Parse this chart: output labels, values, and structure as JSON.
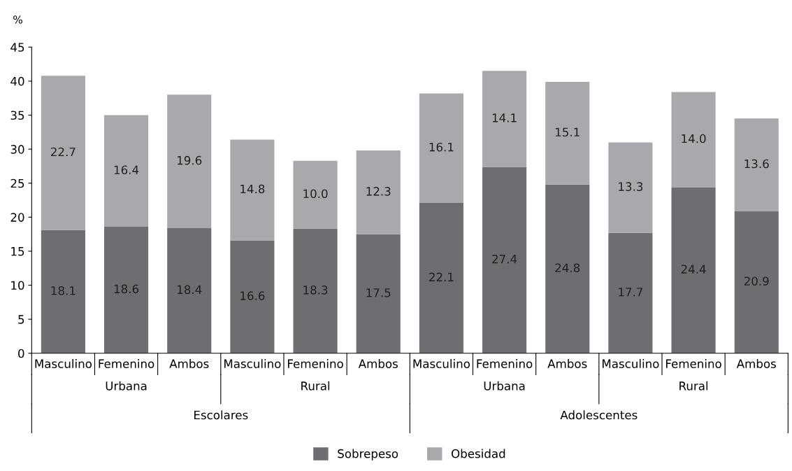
{
  "chart_data": {
    "type": "bar",
    "stacked": true,
    "ylabel": "%",
    "categories": [
      "Masculino",
      "Femenino",
      "Ambos",
      "Masculino",
      "Femenino",
      "Ambos",
      "Masculino",
      "Femenino",
      "Ambos",
      "Masculino",
      "Femenino",
      "Ambos"
    ],
    "series": [
      {
        "name": "Sobrepeso",
        "color": "#6d6e71",
        "values": [
          18.1,
          18.6,
          18.4,
          16.6,
          18.3,
          17.5,
          22.1,
          27.4,
          24.8,
          17.7,
          24.4,
          20.9
        ],
        "value_labels": [
          "18.1",
          "18.6",
          "18.4",
          "16.6",
          "18.3",
          "17.5",
          "22.1",
          "27.4",
          "24.8",
          "17.7",
          "24.4",
          "20.9"
        ]
      },
      {
        "name": "Obesidad",
        "color": "#a7a9ac",
        "values": [
          22.7,
          16.4,
          19.6,
          14.8,
          10.0,
          12.3,
          16.1,
          14.1,
          15.1,
          13.3,
          14.0,
          13.6
        ],
        "value_labels": [
          "22.7",
          "16.4",
          "19.6",
          "14.8",
          "10.0",
          "12.3",
          "16.1",
          "14.1",
          "15.1",
          "13.3",
          "14.0",
          "13.6"
        ]
      }
    ],
    "ylim": [
      0,
      45
    ],
    "yticks": [
      0,
      5,
      10,
      15,
      20,
      25,
      30,
      35,
      40,
      45
    ],
    "grid": false,
    "legend": "bottom",
    "annotations": [
      "Urbana",
      "Rural",
      "Urbana",
      "Rural",
      "Escolares",
      "Adolescentes"
    ]
  }
}
